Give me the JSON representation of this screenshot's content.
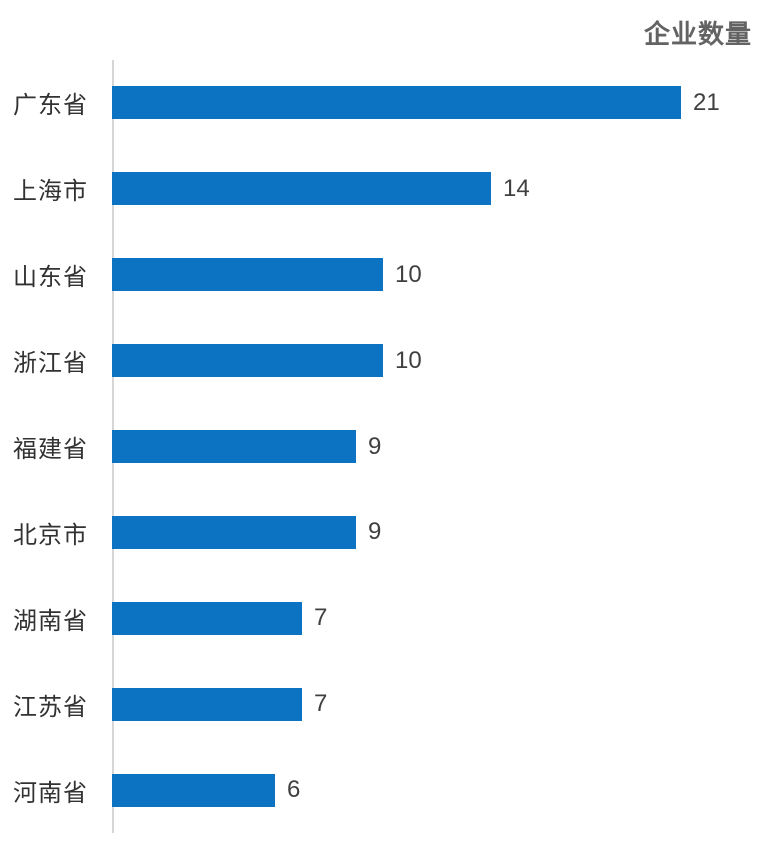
{
  "chart_data": {
    "type": "bar",
    "orientation": "horizontal",
    "title": "企业数量",
    "categories": [
      "广东省",
      "上海市",
      "山东省",
      "浙江省",
      "福建省",
      "北京市",
      "湖南省",
      "江苏省",
      "河南省"
    ],
    "values": [
      21,
      14,
      10,
      10,
      9,
      9,
      7,
      7,
      6
    ],
    "xlabel": "",
    "ylabel": "",
    "xlim": [
      0,
      24
    ],
    "grid": false,
    "legend": "none",
    "data_labels": true,
    "colors": {
      "bar": "#0b73c1",
      "axis_line": "#d6d6d6",
      "title_text": "#636363",
      "category_text": "#323232",
      "value_text": "#404040"
    }
  }
}
